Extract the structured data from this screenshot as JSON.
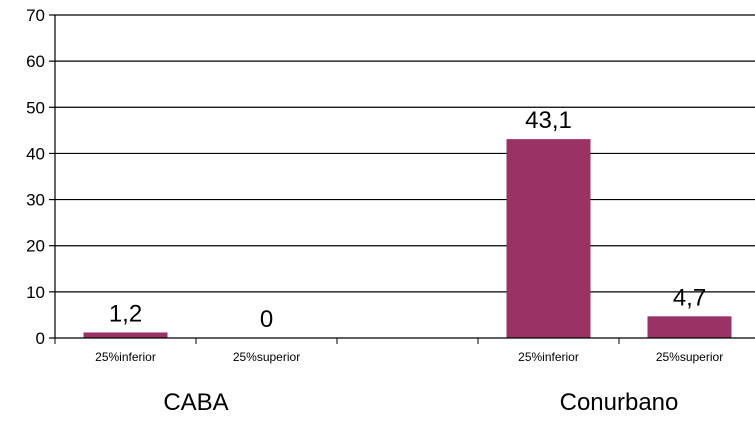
{
  "chart_data": {
    "type": "bar",
    "groups": [
      "CABA",
      "Conurbano"
    ],
    "categories": [
      "25%inferior",
      "25%superior",
      "25%inferior",
      "25%superior"
    ],
    "category_group": [
      0,
      0,
      1,
      1
    ],
    "values": [
      1.2,
      0,
      43.1,
      4.7
    ],
    "value_labels": [
      "1,2",
      "0",
      "43,1",
      "4,7"
    ],
    "ylim": [
      0,
      70
    ],
    "yticks": [
      0,
      10,
      20,
      30,
      40,
      50,
      60,
      70
    ],
    "grid": true,
    "bar_color": "#993366"
  }
}
